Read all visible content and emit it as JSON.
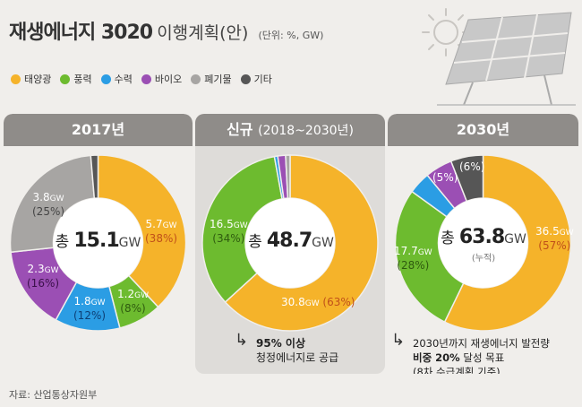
{
  "title": {
    "main": "재생에너지 3020",
    "suffix": "이행계획(안)",
    "unit": "(단위: %, GW)"
  },
  "legend": [
    {
      "label": "태양광",
      "color": "#f5b32a"
    },
    {
      "label": "풍력",
      "color": "#6dbb2f"
    },
    {
      "label": "수력",
      "color": "#2b9de4"
    },
    {
      "label": "바이오",
      "color": "#9b4fb4"
    },
    {
      "label": "폐기물",
      "color": "#a7a5a3"
    },
    {
      "label": "기타",
      "color": "#565656"
    }
  ],
  "panels": [
    {
      "header": "2017년",
      "center_prefix": "총",
      "center_value": "15.1",
      "center_unit": "GW",
      "labels": [
        {
          "value": "5.7",
          "unit": "GW",
          "pct": "(38%)"
        },
        {
          "value": "1.2",
          "unit": "GW",
          "pct": "(8%)"
        },
        {
          "value": "1.8",
          "unit": "GW",
          "pct": "(12%)"
        },
        {
          "value": "2.3",
          "unit": "GW",
          "pct": "(16%)"
        },
        {
          "value": "3.8",
          "unit": "GW",
          "pct": "(25%)"
        }
      ]
    },
    {
      "header": "신규",
      "header_sub": "(2018~2030년)",
      "center_prefix": "총",
      "center_value": "48.7",
      "center_unit": "GW",
      "labels": [
        {
          "value": "30.8",
          "unit": "GW",
          "pct": "(63%)"
        },
        {
          "value": "16.5",
          "unit": "GW",
          "pct": "(34%)"
        }
      ],
      "note_line1": "95% 이상",
      "note_line2": "청정에너지로 공급"
    },
    {
      "header": "2030년",
      "center_prefix": "총",
      "center_value": "63.8",
      "center_unit": "GW",
      "center_sub": "(누적)",
      "labels": [
        {
          "value": "36.5",
          "unit": "GW",
          "pct": "(57%)"
        },
        {
          "value": "17.7",
          "unit": "GW",
          "pct": "(28%)"
        },
        {
          "pct": "(5%)"
        },
        {
          "pct": "(6%)"
        }
      ],
      "note_line1": "2030년까지 재생에너지 발전량",
      "note_line2_bold": "비중 20%",
      "note_line2": "달성 목표",
      "note_line3": "(8차 수급계획 기준)"
    }
  ],
  "source": "자료: 산업통상자원부",
  "chart_data": [
    {
      "type": "pie",
      "title": "2017년",
      "total": 15.1,
      "categories": [
        "태양광",
        "풍력",
        "수력",
        "바이오",
        "폐기물",
        "기타"
      ],
      "values": [
        5.7,
        1.2,
        1.8,
        2.3,
        3.8,
        0.2
      ],
      "percents": [
        38,
        8,
        12,
        16,
        25,
        1
      ]
    },
    {
      "type": "pie",
      "title": "신규 (2018~2030년)",
      "total": 48.7,
      "categories": [
        "태양광",
        "풍력",
        "수력",
        "바이오",
        "폐기물"
      ],
      "values": [
        30.8,
        16.5,
        0.3,
        0.7,
        0.4
      ],
      "percents": [
        63,
        34,
        0.6,
        1.5,
        0.9
      ]
    },
    {
      "type": "pie",
      "title": "2030년",
      "total": 63.8,
      "categories": [
        "태양광",
        "풍력",
        "수력",
        "바이오",
        "기타"
      ],
      "values": [
        36.5,
        17.7,
        2.6,
        3.2,
        3.8
      ],
      "percents": [
        57,
        28,
        4,
        5,
        6
      ]
    }
  ]
}
